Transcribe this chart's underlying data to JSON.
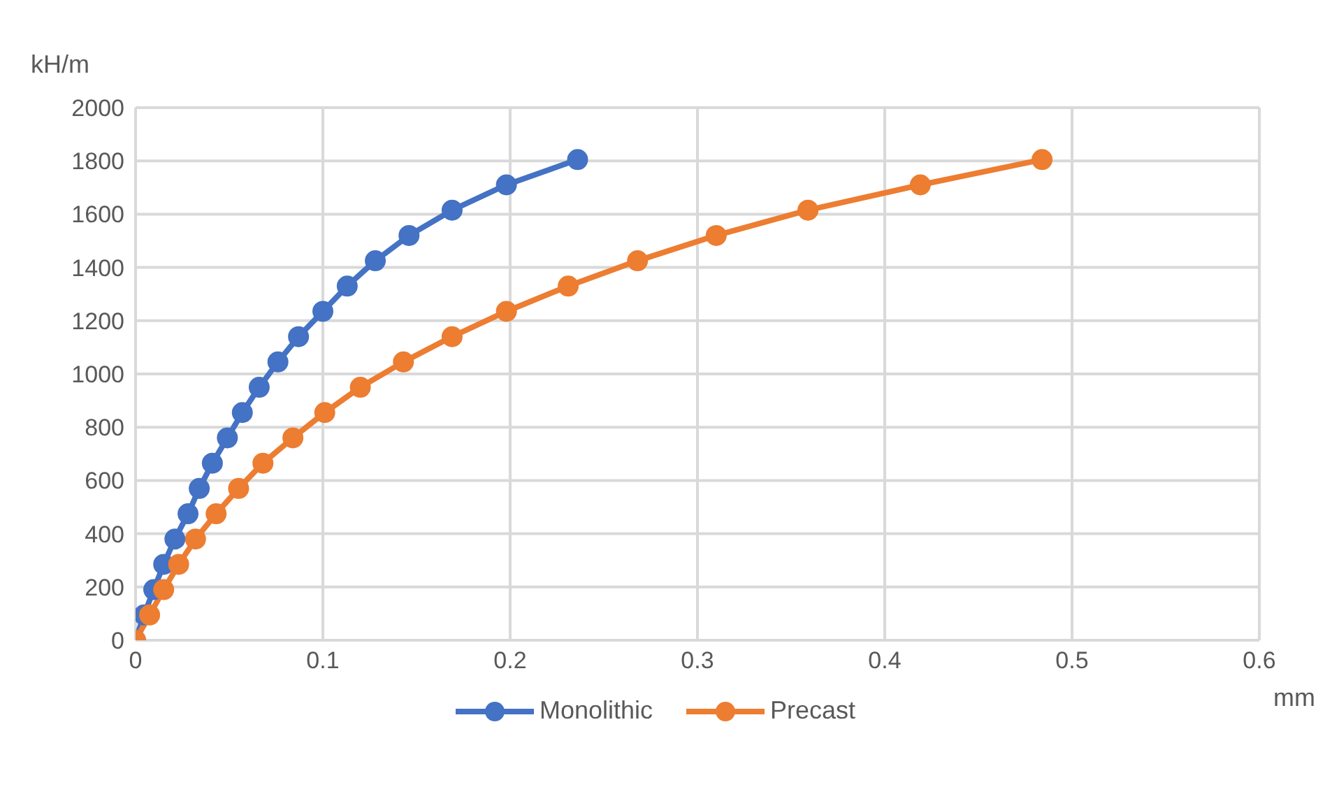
{
  "chart_data": {
    "type": "line",
    "xlabel": "mm",
    "ylabel": "kH/m",
    "xlim": [
      0,
      0.6
    ],
    "xticks": [
      0,
      0.1,
      0.2,
      0.3,
      0.4,
      0.5,
      0.6
    ],
    "ylim": [
      0,
      2000
    ],
    "yticks": [
      0,
      200,
      400,
      600,
      800,
      1000,
      1200,
      1400,
      1600,
      1800,
      2000
    ],
    "grid": true,
    "legend": "bottom",
    "marker": "circle",
    "line_style": "solid",
    "series": [
      {
        "name": "Monolithic",
        "color": "#4472c4",
        "x": [
          0,
          0.0045,
          0.0097,
          0.015,
          0.021,
          0.028,
          0.034,
          0.041,
          0.049,
          0.057,
          0.066,
          0.076,
          0.087,
          0.1,
          0.113,
          0.128,
          0.146,
          0.169,
          0.198,
          0.236
        ],
        "values": [
          0,
          95,
          190,
          285,
          380,
          475,
          570,
          665,
          760,
          855,
          950,
          1045,
          1140,
          1235,
          1330,
          1425,
          1520,
          1615,
          1710,
          1805
        ]
      },
      {
        "name": "Precast",
        "color": "#ed7d31",
        "x": [
          0,
          0.0075,
          0.015,
          0.023,
          0.032,
          0.043,
          0.055,
          0.068,
          0.084,
          0.101,
          0.12,
          0.143,
          0.169,
          0.198,
          0.231,
          0.268,
          0.31,
          0.359,
          0.419,
          0.484
        ],
        "values": [
          0,
          95,
          190,
          285,
          380,
          475,
          570,
          665,
          760,
          855,
          950,
          1045,
          1140,
          1235,
          1330,
          1425,
          1520,
          1615,
          1710,
          1805
        ]
      }
    ]
  }
}
